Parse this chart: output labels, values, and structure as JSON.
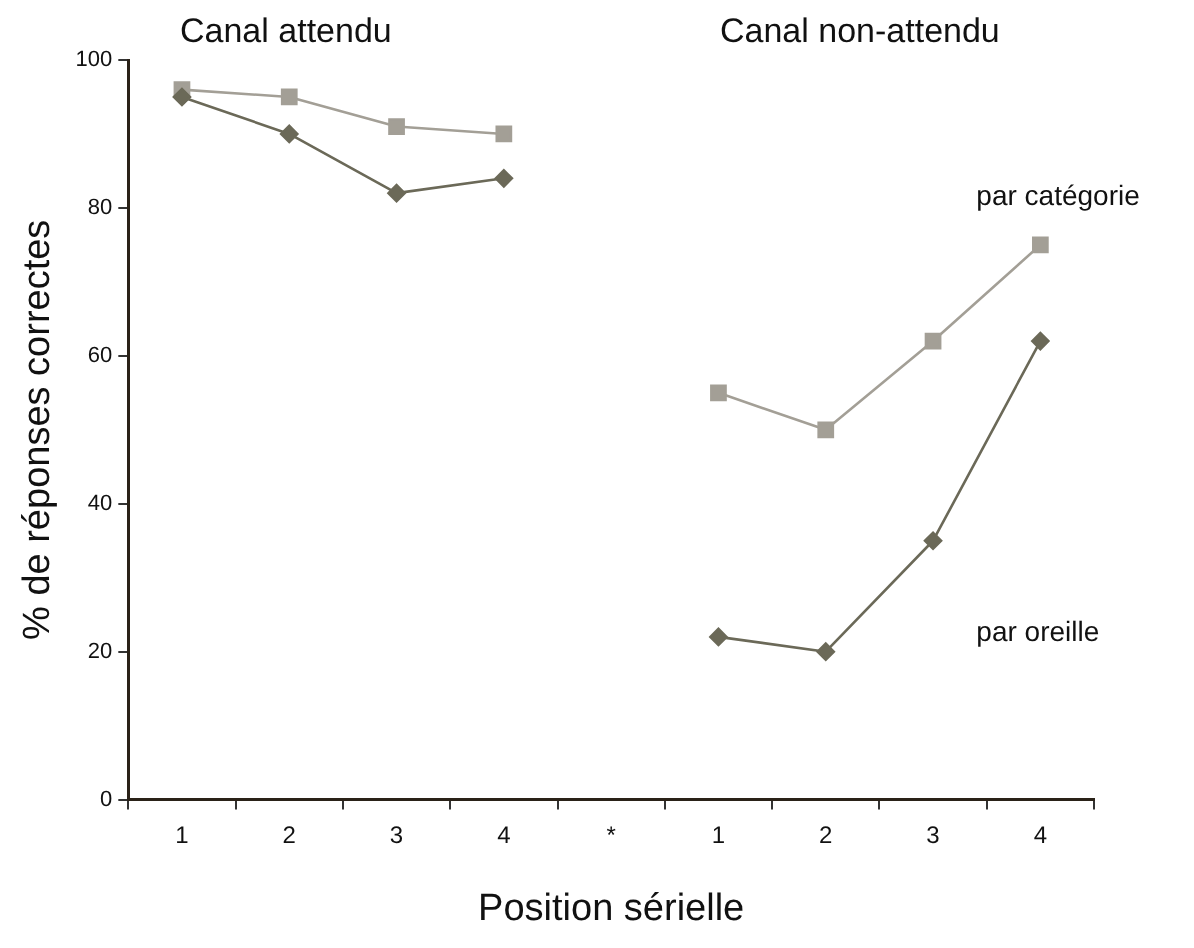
{
  "chart_data": {
    "type": "line",
    "xlabel": "Position sérielle",
    "ylabel": "% de réponses correctes",
    "annotations": [
      "Canal attendu",
      "Canal non-attendu"
    ],
    "categories": [
      "1",
      "2",
      "3",
      "4",
      "*",
      "1",
      "2",
      "3",
      "4"
    ],
    "series": [
      {
        "name": "par catégorie",
        "color": "#a39f96",
        "marker": "square",
        "values": [
          96,
          95,
          91,
          90,
          null,
          55,
          50,
          62,
          75
        ]
      },
      {
        "name": "par oreille",
        "color": "#6b6958",
        "marker": "diamond",
        "values": [
          95,
          90,
          82,
          84,
          null,
          22,
          20,
          35,
          62
        ]
      }
    ],
    "ylim": [
      0,
      100
    ],
    "yticks": [
      0,
      20,
      40,
      60,
      80,
      100
    ],
    "grid": false,
    "legend": false,
    "line_style": "solid"
  }
}
